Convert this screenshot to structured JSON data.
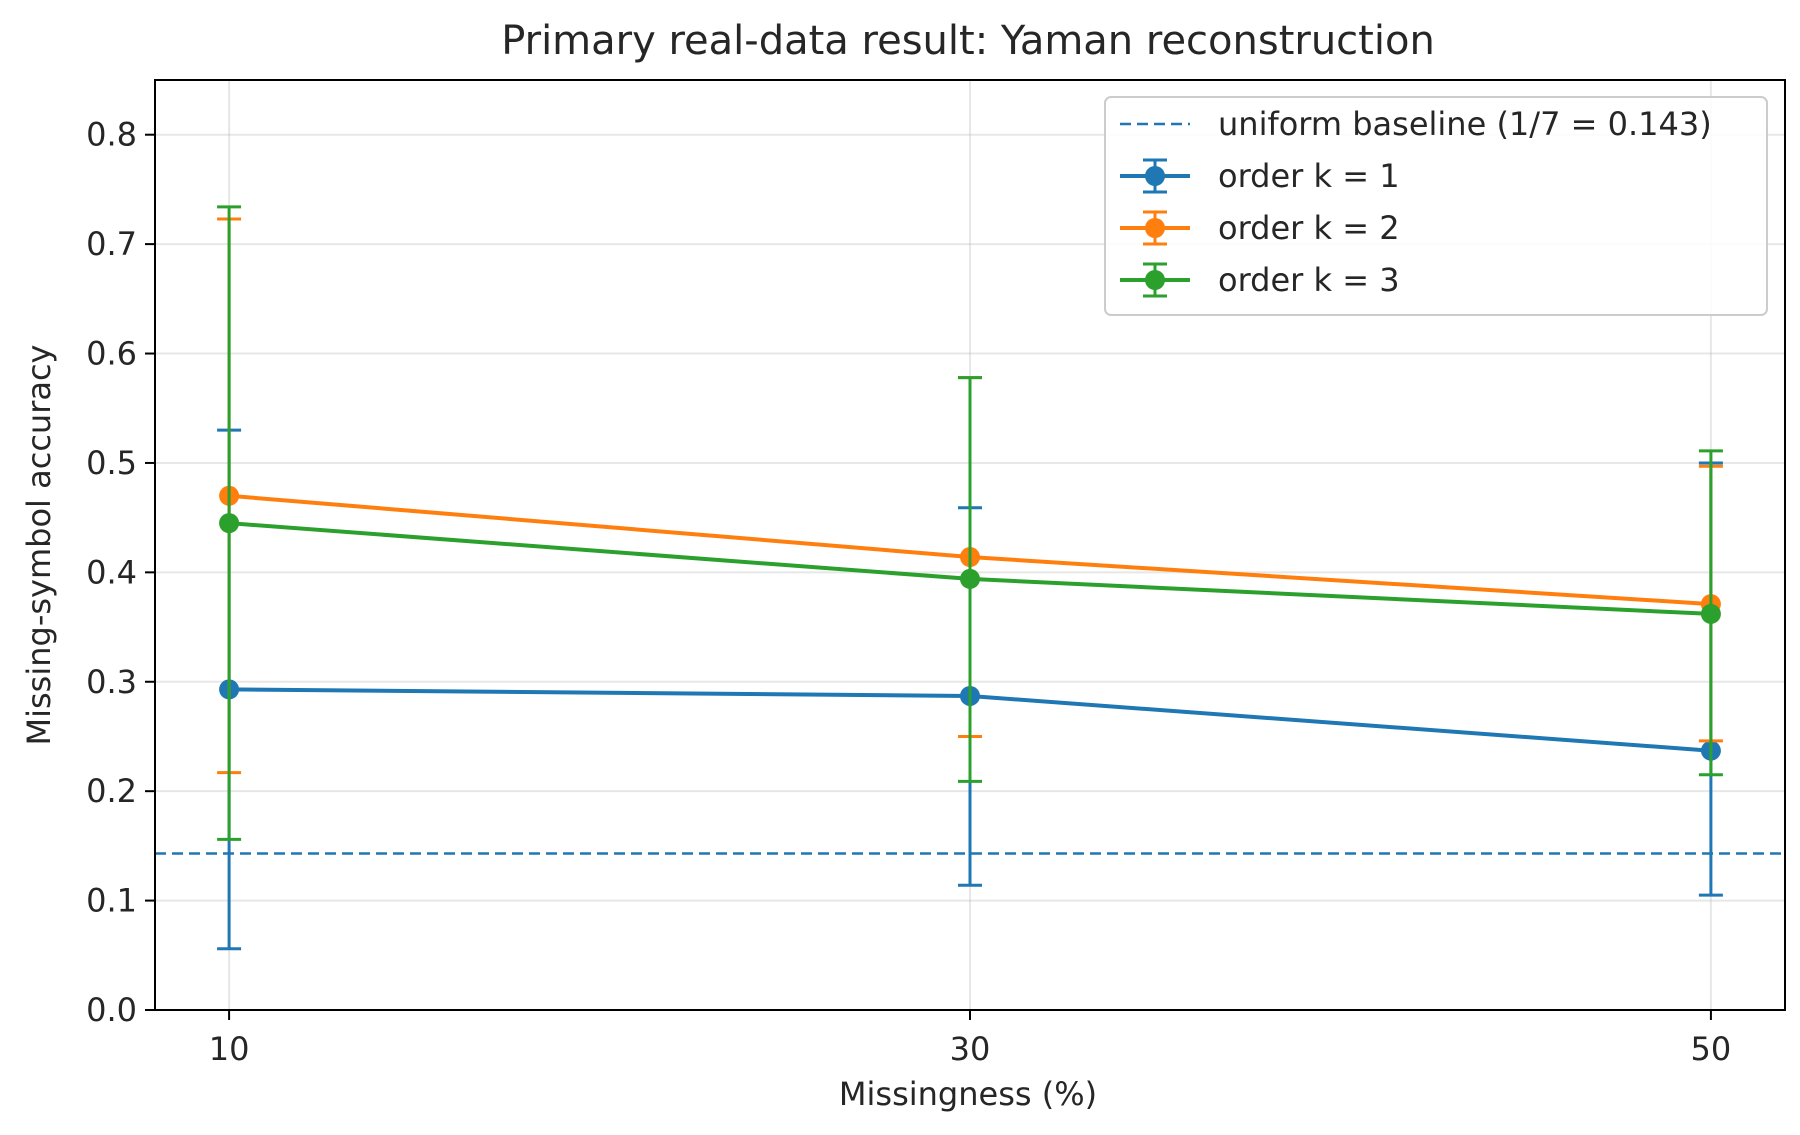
{
  "chart_data": {
    "type": "line",
    "title": "Primary real-data result: Yaman reconstruction",
    "xlabel": "Missingness (%)",
    "ylabel": "Missing-symbol accuracy",
    "x": [
      10,
      30,
      50
    ],
    "xlim": [
      8,
      52
    ],
    "ylim": [
      0.0,
      0.85
    ],
    "yticks": [
      0.0,
      0.1,
      0.2,
      0.3,
      0.4,
      0.5,
      0.6,
      0.7,
      0.8
    ],
    "ytick_labels": [
      "0.0",
      "0.1",
      "0.2",
      "0.3",
      "0.4",
      "0.5",
      "0.6",
      "0.7",
      "0.8"
    ],
    "xticks": [
      10,
      30,
      50
    ],
    "xtick_labels": [
      "10",
      "30",
      "50"
    ],
    "grid": true,
    "legend_position": "top-right",
    "baseline": {
      "label": "uniform baseline (1/7 = 0.143)",
      "value": 0.143,
      "color": "#1f77b4",
      "style": "dashed"
    },
    "series": [
      {
        "name": "order k = 1",
        "color": "#1f77b4",
        "values": [
          0.293,
          0.287,
          0.237
        ],
        "err_low": [
          0.056,
          0.114,
          0.105
        ],
        "err_high": [
          0.53,
          0.459,
          0.5
        ]
      },
      {
        "name": "order k = 2",
        "color": "#ff7f0e",
        "values": [
          0.47,
          0.414,
          0.371
        ],
        "err_low": [
          0.217,
          0.25,
          0.246
        ],
        "err_high": [
          0.723,
          0.578,
          0.497
        ]
      },
      {
        "name": "order k = 3",
        "color": "#2ca02c",
        "values": [
          0.445,
          0.394,
          0.362
        ],
        "err_low": [
          0.156,
          0.209,
          0.215
        ],
        "err_high": [
          0.734,
          0.578,
          0.511
        ]
      }
    ]
  }
}
